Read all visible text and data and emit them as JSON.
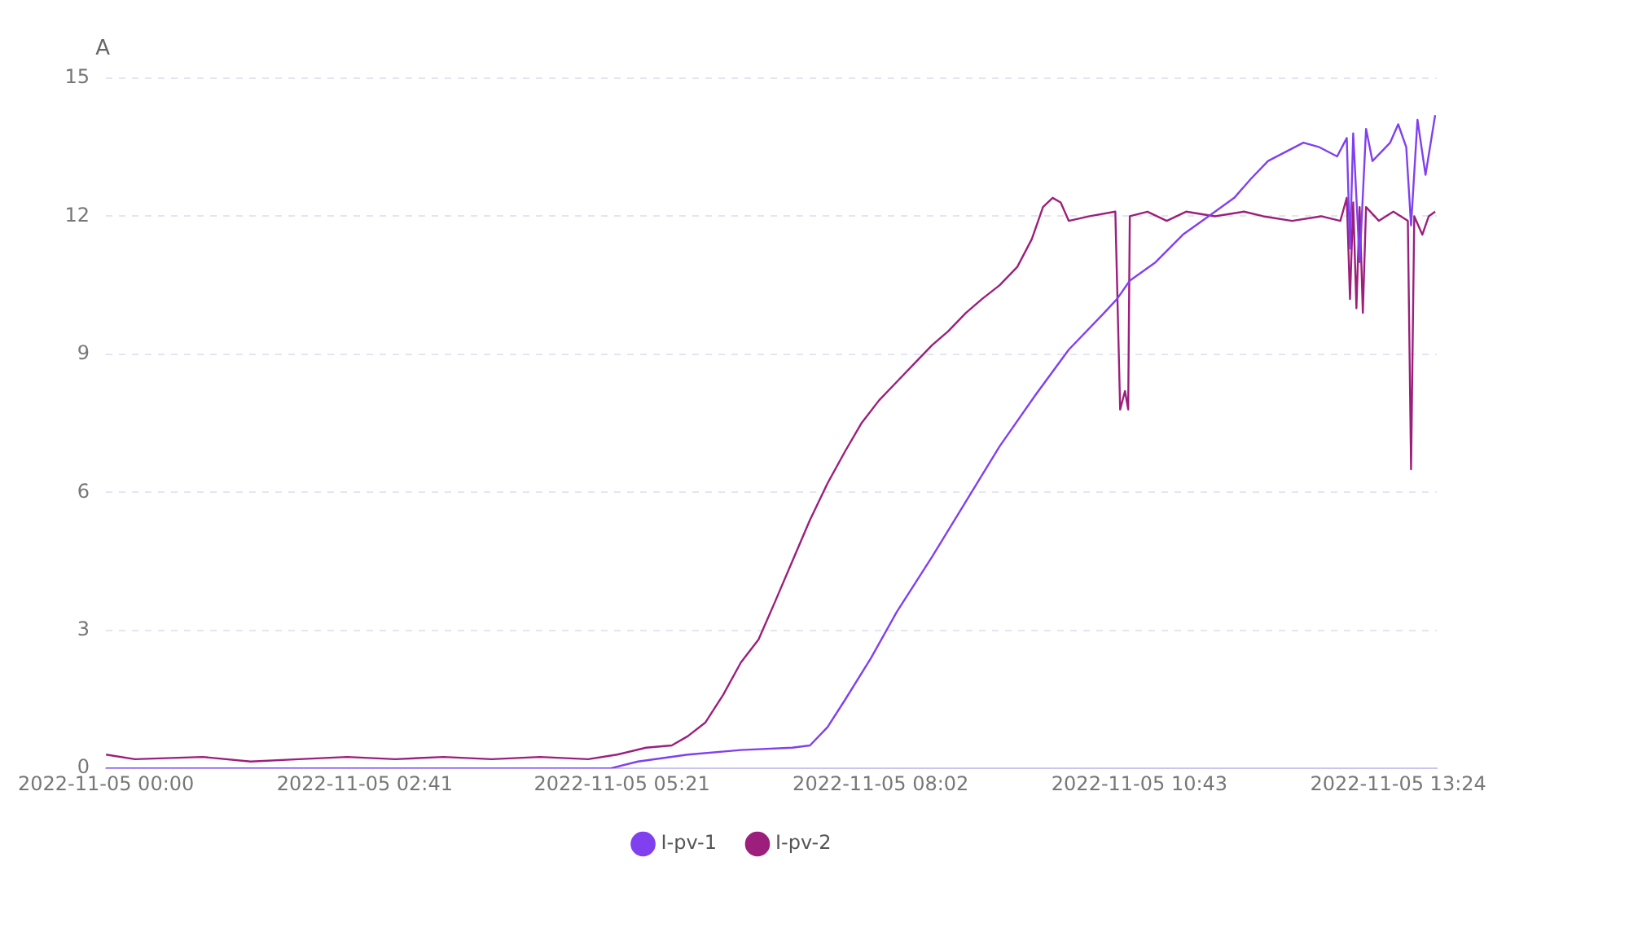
{
  "chart_data": {
    "type": "line",
    "ylabel": "A",
    "xlim": [
      "2022-11-05T00:00",
      "2022-11-05T13:48"
    ],
    "ylim": [
      0,
      15
    ],
    "xticks": [
      {
        "value": "2022-11-05T00:00",
        "label": "2022-11-05 00:00"
      },
      {
        "value": "2022-11-05T02:41",
        "label": "2022-11-05 02:41"
      },
      {
        "value": "2022-11-05T05:21",
        "label": "2022-11-05 05:21"
      },
      {
        "value": "2022-11-05T08:02",
        "label": "2022-11-05 08:02"
      },
      {
        "value": "2022-11-05T10:43",
        "label": "2022-11-05 10:43"
      },
      {
        "value": "2022-11-05T13:24",
        "label": "2022-11-05 13:24"
      }
    ],
    "yticks": [
      0,
      3,
      6,
      9,
      12,
      15
    ],
    "grid": "y",
    "legend": "bottom",
    "marker": "none",
    "line_style": "solid",
    "series": [
      {
        "name": "I-pv-1",
        "color": "#8040f0",
        "x": [
          "2022-11-05T00:00",
          "2022-11-05T05:14",
          "2022-11-05T05:31",
          "2022-11-05T06:02",
          "2022-11-05T06:35",
          "2022-11-05T07:07",
          "2022-11-05T07:18",
          "2022-11-05T07:29",
          "2022-11-05T07:40",
          "2022-11-05T07:56",
          "2022-11-05T08:12",
          "2022-11-05T08:34",
          "2022-11-05T08:55",
          "2022-11-05T09:16",
          "2022-11-05T09:38",
          "2022-11-05T09:59",
          "2022-11-05T10:21",
          "2022-11-05T10:29",
          "2022-11-05T10:37",
          "2022-11-05T10:53",
          "2022-11-05T11:10",
          "2022-11-05T11:26",
          "2022-11-05T11:42",
          "2022-11-05T11:52",
          "2022-11-05T12:03",
          "2022-11-05T12:14",
          "2022-11-05T12:25",
          "2022-11-05T12:35",
          "2022-11-05T12:46",
          "2022-11-05T12:52",
          "2022-11-05T12:54",
          "2022-11-05T12:56",
          "2022-11-05T13:00",
          "2022-11-05T13:04",
          "2022-11-05T13:08",
          "2022-11-05T13:19",
          "2022-11-05T13:24",
          "2022-11-05T13:29",
          "2022-11-05T13:32",
          "2022-11-05T13:36",
          "2022-11-05T13:41",
          "2022-11-05T13:47"
        ],
        "values": [
          0,
          0,
          0.15,
          0.3,
          0.4,
          0.45,
          0.5,
          0.9,
          1.5,
          2.4,
          3.4,
          4.6,
          5.8,
          7.0,
          8.1,
          9.1,
          9.9,
          10.2,
          10.6,
          11.0,
          11.6,
          12.0,
          12.4,
          12.8,
          13.2,
          13.4,
          13.6,
          13.5,
          13.3,
          13.7,
          11.3,
          13.8,
          11.0,
          13.9,
          13.2,
          13.6,
          14.0,
          13.5,
          11.8,
          14.1,
          12.9,
          14.2
        ]
      },
      {
        "name": "I-pv-2",
        "color": "#9c1f7c",
        "x": [
          "2022-11-05T00:00",
          "2022-11-05T00:18",
          "2022-11-05T01:00",
          "2022-11-05T01:30",
          "2022-11-05T02:00",
          "2022-11-05T02:30",
          "2022-11-05T03:00",
          "2022-11-05T03:30",
          "2022-11-05T04:00",
          "2022-11-05T04:30",
          "2022-11-05T05:00",
          "2022-11-05T05:18",
          "2022-11-05T05:36",
          "2022-11-05T05:52",
          "2022-11-05T06:02",
          "2022-11-05T06:13",
          "2022-11-05T06:24",
          "2022-11-05T06:35",
          "2022-11-05T06:46",
          "2022-11-05T06:56",
          "2022-11-05T07:07",
          "2022-11-05T07:18",
          "2022-11-05T07:29",
          "2022-11-05T07:40",
          "2022-11-05T07:50",
          "2022-11-05T08:01",
          "2022-11-05T08:12",
          "2022-11-05T08:23",
          "2022-11-05T08:34",
          "2022-11-05T08:44",
          "2022-11-05T08:55",
          "2022-11-05T09:05",
          "2022-11-05T09:16",
          "2022-11-05T09:27",
          "2022-11-05T09:36",
          "2022-11-05T09:43",
          "2022-11-05T09:49",
          "2022-11-05T09:54",
          "2022-11-05T09:59",
          "2022-11-05T10:12",
          "2022-11-05T10:28",
          "2022-11-05T10:31",
          "2022-11-05T10:34",
          "2022-11-05T10:36",
          "2022-11-05T10:37",
          "2022-11-05T10:48",
          "2022-11-05T11:00",
          "2022-11-05T11:12",
          "2022-11-05T11:30",
          "2022-11-05T11:48",
          "2022-11-05T12:00",
          "2022-11-05T12:18",
          "2022-11-05T12:36",
          "2022-11-05T12:48",
          "2022-11-05T12:52",
          "2022-11-05T12:54",
          "2022-11-05T12:56",
          "2022-11-05T12:58",
          "2022-11-05T13:00",
          "2022-11-05T13:02",
          "2022-11-05T13:04",
          "2022-11-05T13:12",
          "2022-11-05T13:21",
          "2022-11-05T13:30",
          "2022-11-05T13:32",
          "2022-11-05T13:34",
          "2022-11-05T13:39",
          "2022-11-05T13:43",
          "2022-11-05T13:47"
        ],
        "values": [
          0.3,
          0.2,
          0.25,
          0.15,
          0.2,
          0.25,
          0.2,
          0.25,
          0.2,
          0.25,
          0.2,
          0.3,
          0.45,
          0.5,
          0.7,
          1.0,
          1.6,
          2.3,
          2.8,
          3.6,
          4.5,
          5.4,
          6.2,
          6.9,
          7.5,
          8.0,
          8.4,
          8.8,
          9.2,
          9.5,
          9.9,
          10.2,
          10.5,
          10.9,
          11.5,
          12.2,
          12.4,
          12.3,
          11.9,
          12.0,
          12.1,
          7.8,
          8.2,
          7.8,
          12.0,
          12.1,
          11.9,
          12.1,
          12.0,
          12.1,
          12.0,
          11.9,
          12.0,
          11.9,
          12.4,
          10.2,
          12.3,
          10.0,
          12.2,
          9.9,
          12.2,
          11.9,
          12.1,
          11.9,
          6.5,
          12.0,
          11.6,
          12.0,
          12.1
        ]
      }
    ]
  }
}
